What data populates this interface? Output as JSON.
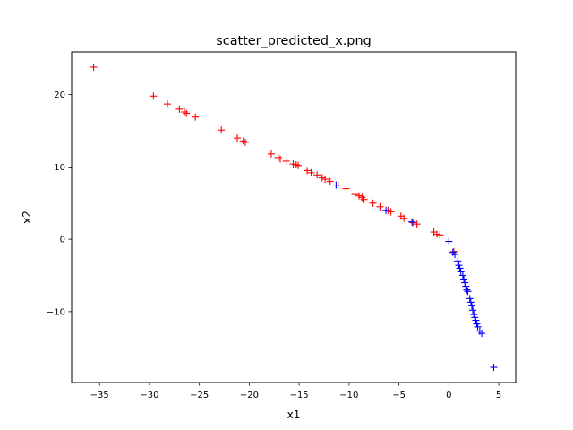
{
  "chart_data": {
    "type": "scatter",
    "title": "scatter_predicted_x.png",
    "xlabel": "x1",
    "ylabel": "x2",
    "xlim": [
      -37.8,
      6.7
    ],
    "ylim": [
      -19.8,
      25.9
    ],
    "xticks": [
      -35,
      -30,
      -25,
      -20,
      -15,
      -10,
      -5,
      0,
      5
    ],
    "yticks": [
      -10,
      0,
      10,
      20
    ],
    "grid": false,
    "marker": "+",
    "series": [
      {
        "color": "#ff0000",
        "points": [
          [
            -35.6,
            23.8
          ],
          [
            -29.6,
            19.8
          ],
          [
            -28.2,
            18.7
          ],
          [
            -27.0,
            18.0
          ],
          [
            -26.5,
            17.6
          ],
          [
            -26.3,
            17.4
          ],
          [
            -25.4,
            16.9
          ],
          [
            -22.8,
            15.1
          ],
          [
            -21.2,
            14.0
          ],
          [
            -20.6,
            13.6
          ],
          [
            -20.4,
            13.4
          ],
          [
            -17.8,
            11.8
          ],
          [
            -17.1,
            11.3
          ],
          [
            -16.9,
            11.1
          ],
          [
            -16.3,
            10.8
          ],
          [
            -15.6,
            10.4
          ],
          [
            -15.3,
            10.3
          ],
          [
            -15.1,
            10.2
          ],
          [
            -14.2,
            9.5
          ],
          [
            -13.8,
            9.2
          ],
          [
            -13.2,
            8.9
          ],
          [
            -12.7,
            8.5
          ],
          [
            -12.4,
            8.3
          ],
          [
            -11.9,
            8.0
          ],
          [
            -11.1,
            7.5
          ],
          [
            -10.3,
            7.0
          ],
          [
            -9.4,
            6.2
          ],
          [
            -9.0,
            6.0
          ],
          [
            -8.7,
            5.8
          ],
          [
            -8.5,
            5.5
          ],
          [
            -7.6,
            5.0
          ],
          [
            -6.9,
            4.5
          ],
          [
            -6.1,
            4.0
          ],
          [
            -5.8,
            3.8
          ],
          [
            -4.8,
            3.2
          ],
          [
            -4.5,
            2.9
          ],
          [
            -3.6,
            2.3
          ],
          [
            -3.2,
            2.1
          ],
          [
            -1.5,
            1.0
          ],
          [
            -1.2,
            0.7
          ],
          [
            -0.9,
            0.6
          ],
          [
            0.5,
            -1.7
          ]
        ]
      },
      {
        "color": "#0000ff",
        "points": [
          [
            -11.3,
            7.5
          ],
          [
            -6.3,
            4.0
          ],
          [
            -3.7,
            2.4
          ],
          [
            0.0,
            -0.3
          ],
          [
            0.4,
            -1.8
          ],
          [
            0.6,
            -2.1
          ],
          [
            0.9,
            -3.0
          ],
          [
            1.0,
            -3.6
          ],
          [
            1.1,
            -4.0
          ],
          [
            1.2,
            -4.5
          ],
          [
            1.4,
            -5.0
          ],
          [
            1.5,
            -5.5
          ],
          [
            1.6,
            -6.0
          ],
          [
            1.7,
            -6.5
          ],
          [
            1.8,
            -7.0
          ],
          [
            1.9,
            -7.2
          ],
          [
            2.1,
            -8.2
          ],
          [
            2.2,
            -8.7
          ],
          [
            2.3,
            -9.2
          ],
          [
            2.4,
            -9.8
          ],
          [
            2.5,
            -10.4
          ],
          [
            2.6,
            -10.8
          ],
          [
            2.7,
            -11.2
          ],
          [
            2.8,
            -11.7
          ],
          [
            2.9,
            -12.1
          ],
          [
            3.1,
            -12.7
          ],
          [
            3.3,
            -13.0
          ],
          [
            4.5,
            -17.7
          ]
        ]
      }
    ]
  }
}
